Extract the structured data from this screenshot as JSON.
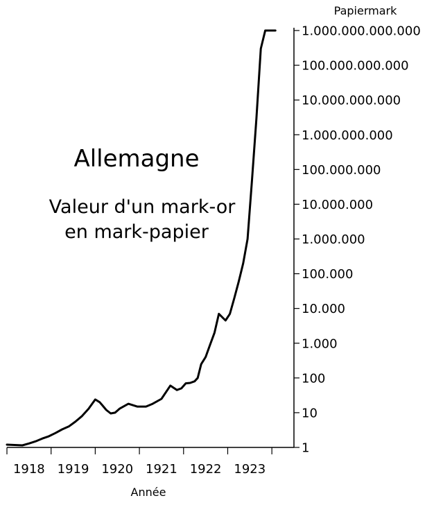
{
  "chart_data": {
    "type": "line",
    "title": "Allemagne",
    "subtitle_lines": [
      "Valeur d'un mark-or",
      "en mark-papier"
    ],
    "xlabel": "Année",
    "ylabel": "Papiermark",
    "y_scale": "log",
    "ylim": [
      1,
      1000000000000
    ],
    "xlim": [
      1917.5,
      1924.0
    ],
    "x_tick_labels": [
      "1918",
      "1919",
      "1920",
      "1921",
      "1922",
      "1923"
    ],
    "x_tick_values": [
      1918.0,
      1919.0,
      1920.0,
      1921.0,
      1922.0,
      1923.0
    ],
    "x_boundaries": [
      1917.5,
      1918.5,
      1919.5,
      1920.5,
      1921.5,
      1922.5,
      1923.5
    ],
    "y_tick_labels": [
      "1",
      "10",
      "100",
      "1.000",
      "10.000",
      "100.000",
      "1.000.000",
      "10.000.000",
      "100.000.000",
      "1.000.000.000",
      "10.000.000.000",
      "100.000.000.000",
      "1.000.000.000.000"
    ],
    "y_axis_position": "right",
    "grid": false,
    "series": [
      {
        "x": [
          1917.5,
          1917.85,
          1918.0,
          1918.15,
          1918.3,
          1918.45,
          1918.6,
          1918.75,
          1918.9,
          1919.05,
          1919.2,
          1919.35,
          1919.5,
          1919.6,
          1919.65,
          1919.75,
          1919.85,
          1919.95,
          1920.05,
          1920.25,
          1920.45,
          1920.65,
          1920.8,
          1921.0,
          1921.2,
          1921.35,
          1921.45,
          1921.55,
          1921.65,
          1921.75,
          1921.82,
          1921.9,
          1922.0,
          1922.1,
          1922.2,
          1922.3,
          1922.45,
          1922.55,
          1922.65,
          1922.75,
          1922.85,
          1922.95,
          1923.05,
          1923.15,
          1923.25,
          1923.35,
          1923.45,
          1923.52,
          1923.58
        ],
        "values": [
          1.2,
          1.15,
          1.3,
          1.5,
          1.8,
          2.1,
          2.6,
          3.3,
          4.0,
          5.5,
          8.0,
          13,
          24,
          20,
          17,
          12,
          9.5,
          10,
          13,
          18,
          15,
          15,
          18,
          25,
          60,
          45,
          50,
          70,
          72,
          80,
          100,
          250,
          400,
          900,
          2000,
          7000,
          4500,
          7000,
          20000,
          60000,
          200000,
          1000000,
          50000000,
          3000000000,
          300000000000,
          1000000000000,
          1000000000000,
          1000000000000,
          1000000000000
        ]
      }
    ]
  }
}
